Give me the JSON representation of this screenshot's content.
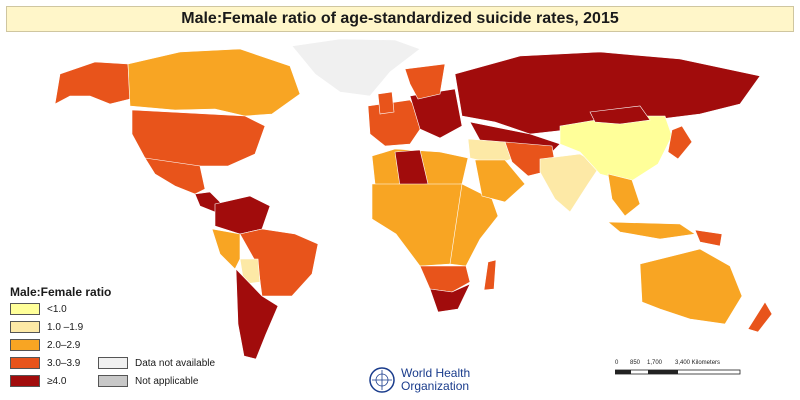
{
  "title": "Male:Female ratio of age-standardized suicide rates, 2015",
  "legend": {
    "title": "Male:Female ratio",
    "classes": [
      {
        "label": "<1.0",
        "color": "#ffff99"
      },
      {
        "label": "1.0 –1.9",
        "color": "#fde9a6"
      },
      {
        "label": "2.0–2.9",
        "color": "#f8a523"
      },
      {
        "label": "3.0–3.9",
        "color": "#e8541b"
      },
      {
        "label": "≥4.0",
        "color": "#a10c0c"
      }
    ],
    "extra": [
      {
        "label": "Data not available",
        "color": "#f0f0f0"
      },
      {
        "label": "Not applicable",
        "color": "#c8c8c8"
      }
    ]
  },
  "organization": {
    "line1": "World Health",
    "line2": "Organization"
  },
  "scale": {
    "ticks": [
      "0",
      "850",
      "1,700",
      "3,400 Kilometers"
    ]
  },
  "regions": [
    {
      "name": "Alaska",
      "class": 3
    },
    {
      "name": "Canada",
      "class": 2
    },
    {
      "name": "Greenland",
      "class": "na"
    },
    {
      "name": "United States",
      "class": 3
    },
    {
      "name": "Mexico",
      "class": 3
    },
    {
      "name": "Central America",
      "class": 4
    },
    {
      "name": "Venezuela/Colombia",
      "class": 4
    },
    {
      "name": "Brazil",
      "class": 3
    },
    {
      "name": "Bolivia",
      "class": 1
    },
    {
      "name": "Peru",
      "class": 2
    },
    {
      "name": "Argentina/Chile",
      "class": 4
    },
    {
      "name": "Western Europe",
      "class": 3
    },
    {
      "name": "Eastern Europe",
      "class": 4
    },
    {
      "name": "Russia",
      "class": 4
    },
    {
      "name": "Kazakhstan/Central Asia",
      "class": 4
    },
    {
      "name": "North Africa",
      "class": 2
    },
    {
      "name": "Algeria",
      "class": 4
    },
    {
      "name": "West/Central Africa",
      "class": 2
    },
    {
      "name": "East Africa",
      "class": 2
    },
    {
      "name": "Southern Africa",
      "class": 3
    },
    {
      "name": "South Africa",
      "class": 4
    },
    {
      "name": "Madagascar",
      "class": 3
    },
    {
      "name": "Middle East",
      "class": 1
    },
    {
      "name": "Arabian Peninsula",
      "class": 2
    },
    {
      "name": "Iran/Afghanistan",
      "class": 3
    },
    {
      "name": "India",
      "class": 1
    },
    {
      "name": "China",
      "class": 0
    },
    {
      "name": "Mongolia",
      "class": 4
    },
    {
      "name": "Southeast Asia",
      "class": 2
    },
    {
      "name": "Japan/Korea",
      "class": 3
    },
    {
      "name": "Indonesia",
      "class": 2
    },
    {
      "name": "Papua New Guinea",
      "class": 3
    },
    {
      "name": "Australia",
      "class": 2
    },
    {
      "name": "New Zealand",
      "class": 3
    },
    {
      "name": "UK/Ireland",
      "class": 3
    },
    {
      "name": "Iceland/Scandinavia",
      "class": 3
    }
  ]
}
